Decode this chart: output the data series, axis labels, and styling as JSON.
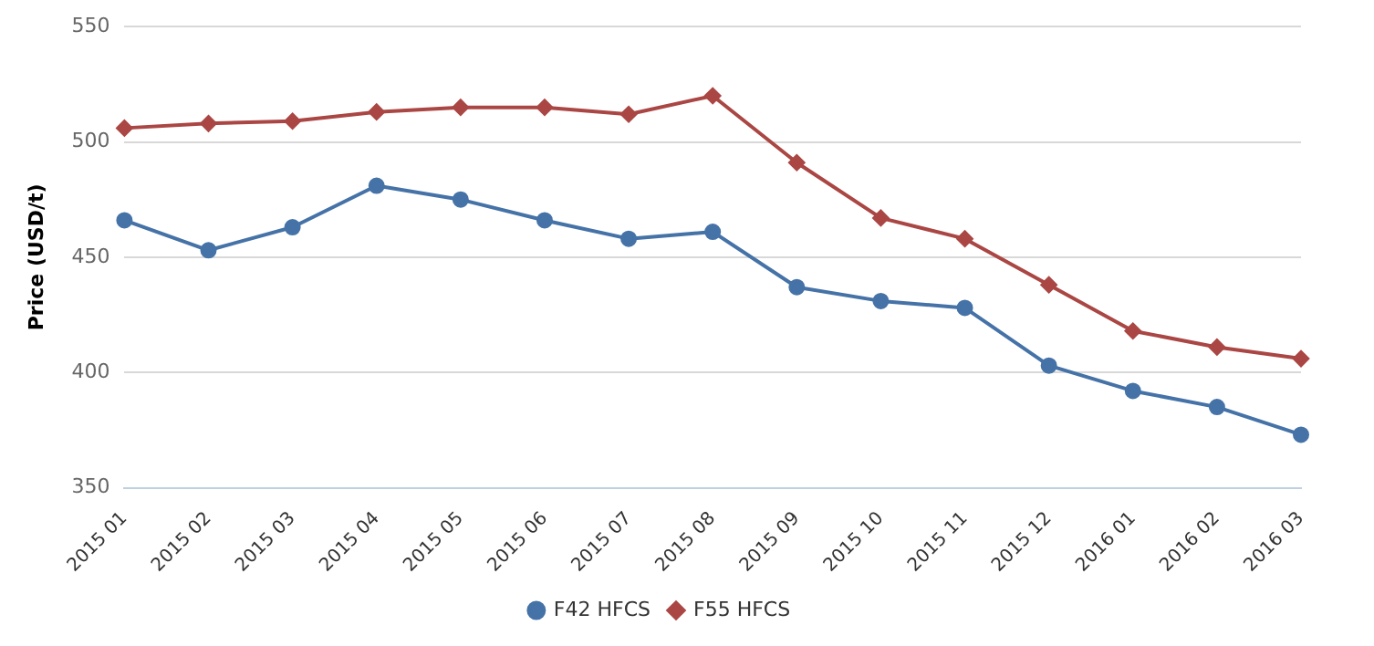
{
  "chart_data": {
    "type": "line",
    "ylabel": "Price (USD/t)",
    "categories": [
      "2015 01",
      "2015 02",
      "2015 03",
      "2015 04",
      "2015 05",
      "2015 06",
      "2015 07",
      "2015 08",
      "2015 09",
      "2015 10",
      "2015 11",
      "2015 12",
      "2016 01",
      "2016 02",
      "2016 03"
    ],
    "series": [
      {
        "name": "F42 HFCS",
        "color": "#4572a7",
        "marker": "circle",
        "values": [
          466,
          453,
          463,
          481,
          475,
          466,
          458,
          461,
          437,
          431,
          428,
          403,
          392,
          385,
          373
        ]
      },
      {
        "name": "F55 HFCS",
        "color": "#aa4643",
        "marker": "diamond",
        "values": [
          506,
          508,
          509,
          513,
          515,
          515,
          512,
          520,
          491,
          467,
          458,
          438,
          418,
          411,
          406
        ]
      }
    ],
    "ylim": [
      350,
      550
    ],
    "yticks": [
      350,
      400,
      450,
      500,
      550
    ],
    "grid": "y",
    "legend": "bottom",
    "line_style": "solid"
  }
}
